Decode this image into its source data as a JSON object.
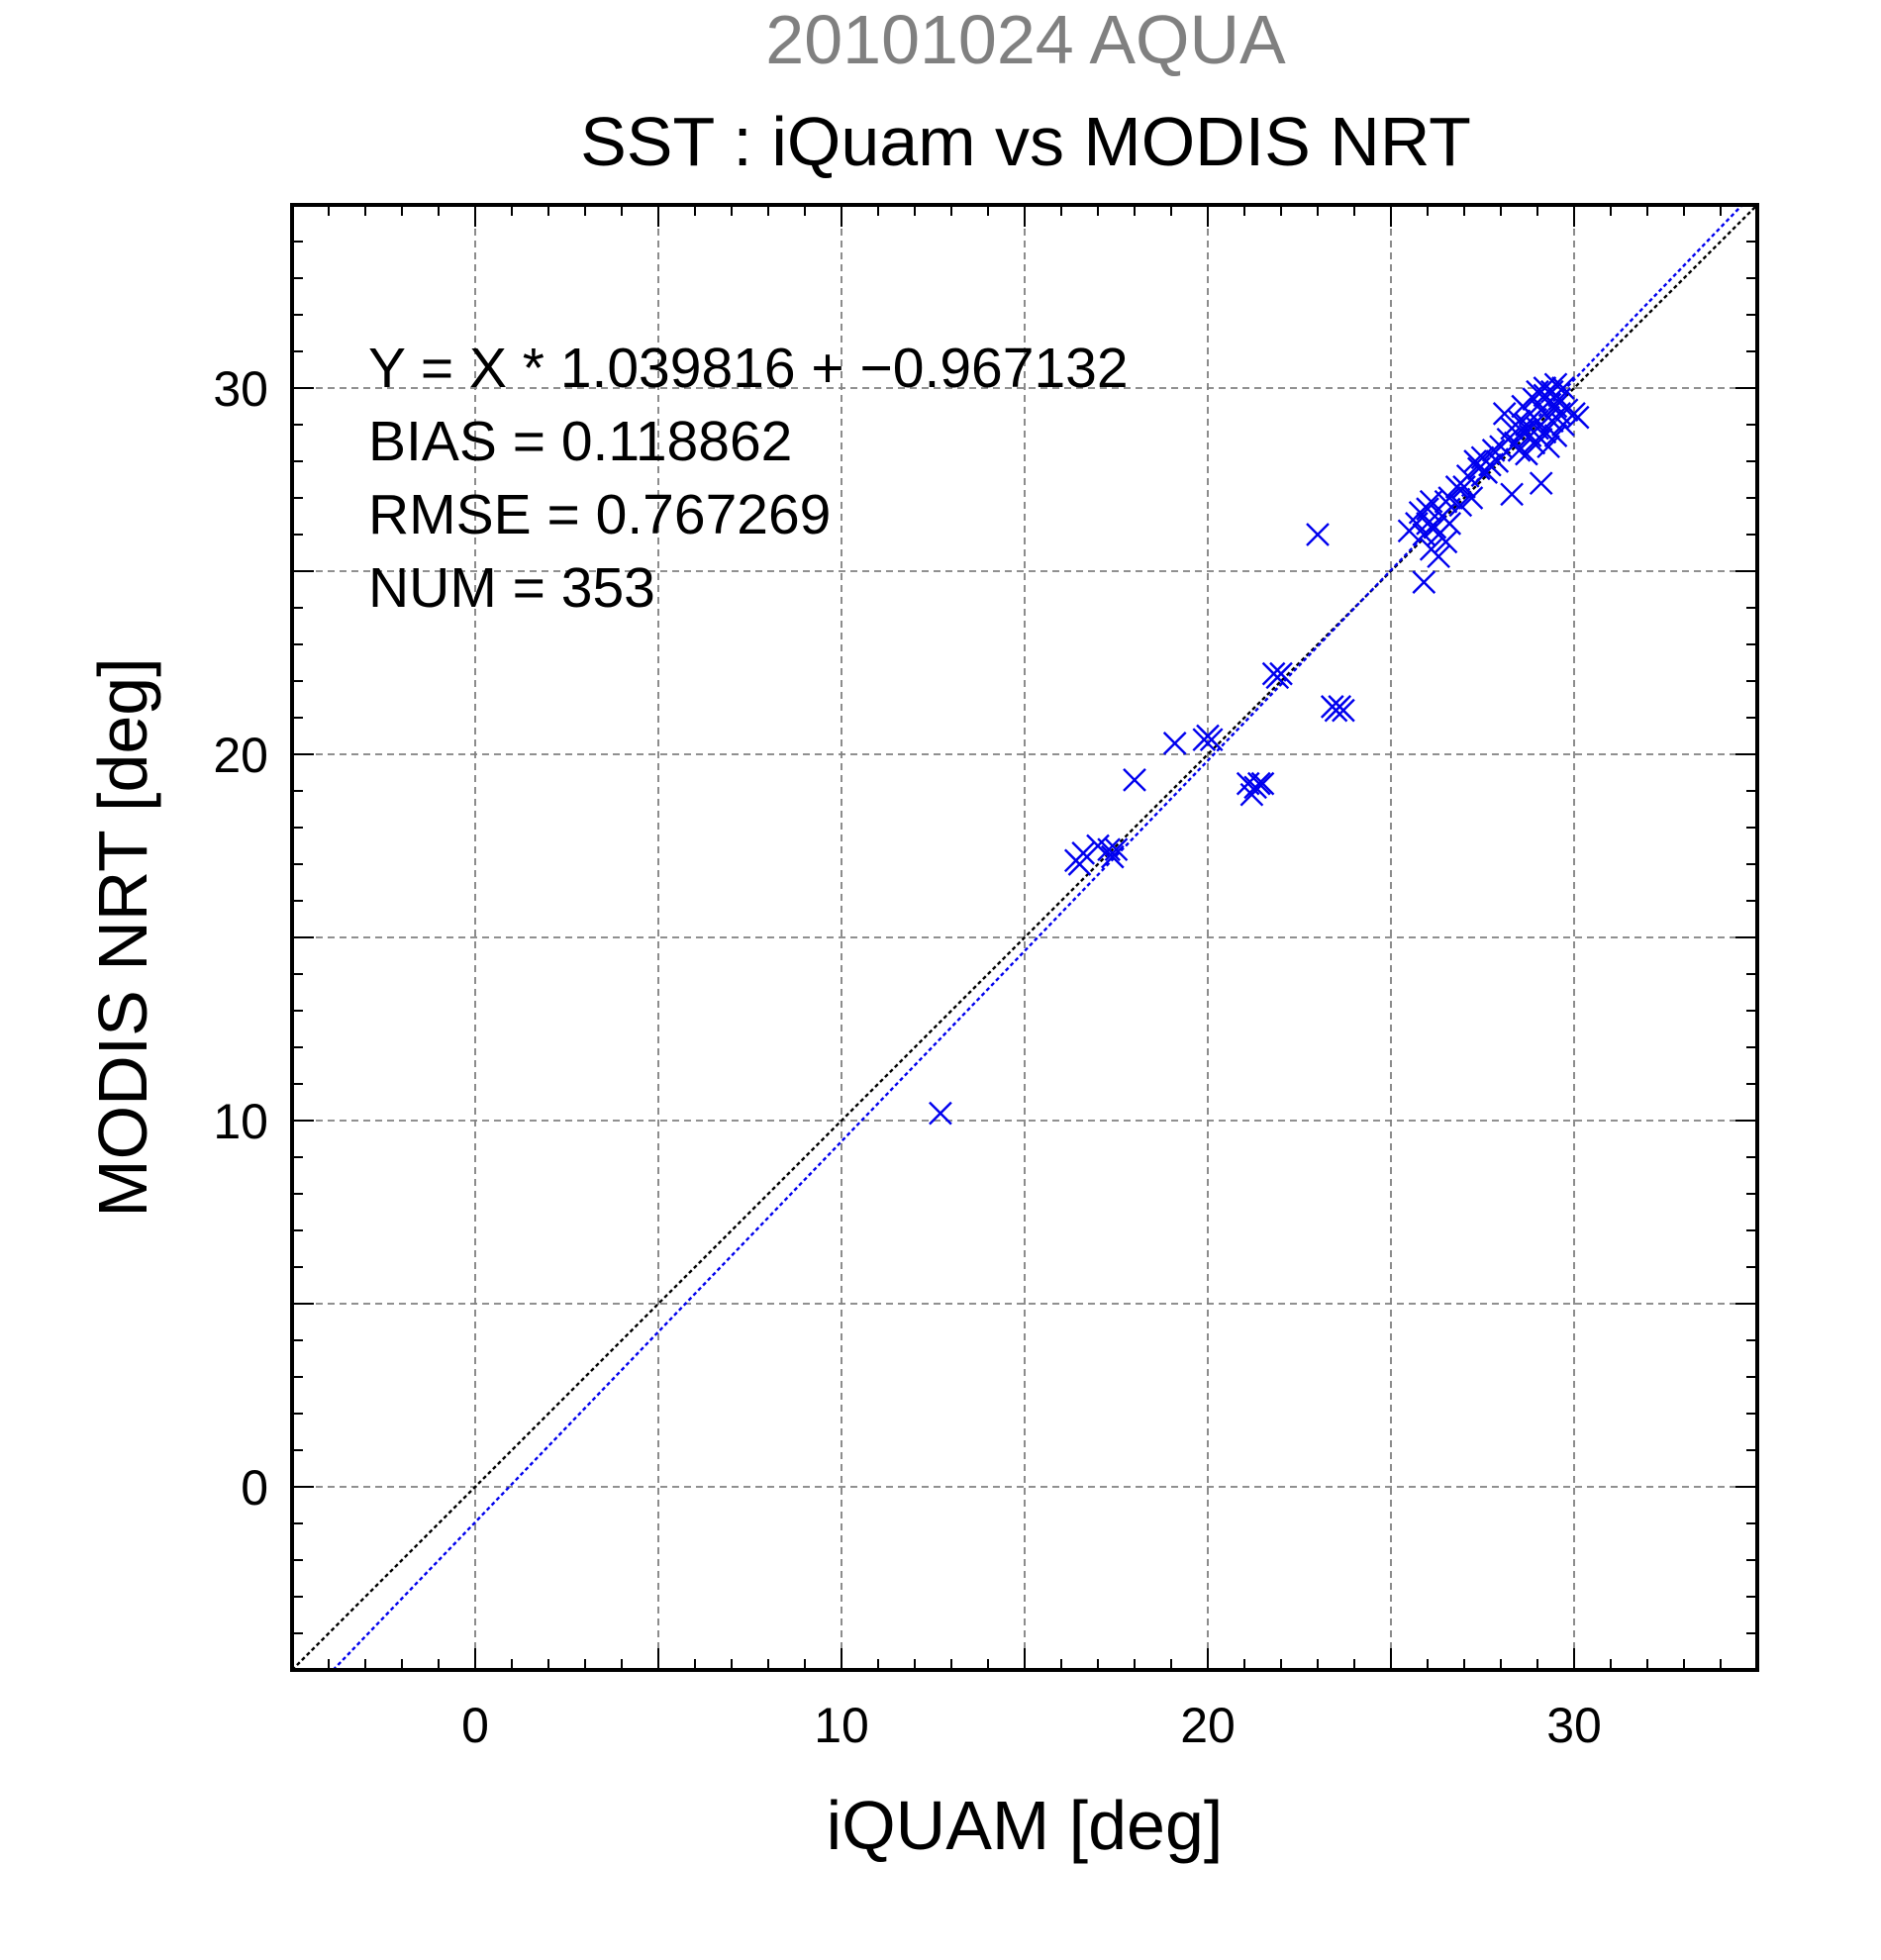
{
  "chart_data": {
    "type": "scatter",
    "supertitle": "20101024 AQUA",
    "title": "SST : iQuam vs MODIS NRT",
    "xlabel": "iQUAM [deg]",
    "ylabel": "MODIS NRT [deg]",
    "xlim": [
      -5,
      35
    ],
    "ylim": [
      -5,
      35
    ],
    "xticks": [
      0,
      10,
      20,
      30
    ],
    "yticks": [
      0,
      10,
      20,
      30
    ],
    "grid": true,
    "colors": {
      "points": "#0000ee",
      "fit_line": "#0000ee",
      "identity_line": "#000000",
      "supertitle": "#808080",
      "grid": "#808080"
    },
    "stats": [
      "Y = X * 1.039816 + −0.967132",
      "BIAS = 0.118862",
      "RMSE = 0.767269",
      "NUM = 353"
    ],
    "fit": {
      "slope": 1.039816,
      "intercept": -0.967132
    },
    "identity": {
      "slope": 1,
      "intercept": 0
    },
    "marker": "x",
    "points": [
      [
        12.7,
        10.2
      ],
      [
        16.4,
        17.1
      ],
      [
        16.6,
        17.3
      ],
      [
        16.5,
        17.0
      ],
      [
        17.0,
        17.5
      ],
      [
        17.3,
        17.4
      ],
      [
        17.4,
        17.2
      ],
      [
        17.5,
        17.4
      ],
      [
        18.0,
        19.3
      ],
      [
        19.1,
        20.3
      ],
      [
        19.9,
        20.4
      ],
      [
        20.0,
        20.5
      ],
      [
        20.1,
        20.4
      ],
      [
        21.1,
        19.2
      ],
      [
        21.2,
        18.9
      ],
      [
        21.3,
        19.1
      ],
      [
        21.4,
        19.2
      ],
      [
        21.5,
        19.2
      ],
      [
        21.8,
        22.2
      ],
      [
        21.9,
        22.1
      ],
      [
        22.0,
        22.2
      ],
      [
        23.0,
        26.0
      ],
      [
        23.4,
        21.3
      ],
      [
        23.5,
        21.2
      ],
      [
        23.6,
        21.3
      ],
      [
        23.7,
        21.2
      ],
      [
        25.5,
        26.1
      ],
      [
        25.7,
        26.3
      ],
      [
        25.8,
        26.6
      ],
      [
        25.9,
        24.7
      ],
      [
        25.9,
        26.0
      ],
      [
        26.0,
        26.7
      ],
      [
        26.0,
        26.3
      ],
      [
        26.1,
        25.6
      ],
      [
        26.1,
        26.9
      ],
      [
        26.2,
        26.2
      ],
      [
        26.3,
        25.4
      ],
      [
        26.3,
        26.0
      ],
      [
        26.4,
        26.5
      ],
      [
        26.5,
        25.8
      ],
      [
        26.5,
        26.9
      ],
      [
        26.6,
        27.0
      ],
      [
        26.6,
        26.3
      ],
      [
        26.8,
        27.3
      ],
      [
        26.9,
        26.8
      ],
      [
        27.0,
        27.3
      ],
      [
        27.1,
        27.6
      ],
      [
        27.2,
        27.0
      ],
      [
        27.3,
        28.0
      ],
      [
        27.4,
        27.8
      ],
      [
        27.5,
        28.1
      ],
      [
        27.6,
        27.7
      ],
      [
        27.7,
        27.9
      ],
      [
        27.8,
        28.3
      ],
      [
        27.9,
        28.0
      ],
      [
        28.0,
        28.4
      ],
      [
        28.1,
        29.3
      ],
      [
        28.2,
        28.6
      ],
      [
        28.3,
        27.1
      ],
      [
        28.3,
        28.9
      ],
      [
        28.4,
        28.5
      ],
      [
        28.5,
        29.1
      ],
      [
        28.5,
        28.3
      ],
      [
        28.6,
        29.5
      ],
      [
        28.6,
        28.8
      ],
      [
        28.7,
        29.0
      ],
      [
        28.7,
        28.2
      ],
      [
        28.8,
        29.3
      ],
      [
        28.8,
        28.7
      ],
      [
        28.9,
        29.7
      ],
      [
        28.9,
        28.5
      ],
      [
        29.0,
        29.1
      ],
      [
        29.0,
        28.9
      ],
      [
        29.0,
        29.9
      ],
      [
        29.1,
        28.6
      ],
      [
        29.1,
        29.4
      ],
      [
        29.1,
        27.4
      ],
      [
        29.2,
        29.8
      ],
      [
        29.2,
        28.8
      ],
      [
        29.2,
        30.0
      ],
      [
        29.3,
        29.2
      ],
      [
        29.3,
        29.6
      ],
      [
        29.3,
        28.4
      ],
      [
        29.4,
        29.9
      ],
      [
        29.4,
        29.1
      ],
      [
        29.5,
        29.5
      ],
      [
        29.5,
        28.7
      ],
      [
        29.5,
        30.1
      ],
      [
        29.6,
        29.3
      ],
      [
        29.6,
        29.7
      ],
      [
        29.7,
        29.0
      ],
      [
        29.7,
        30.0
      ],
      [
        29.8,
        29.4
      ],
      [
        30.0,
        29.3
      ],
      [
        30.1,
        29.2
      ]
    ]
  }
}
